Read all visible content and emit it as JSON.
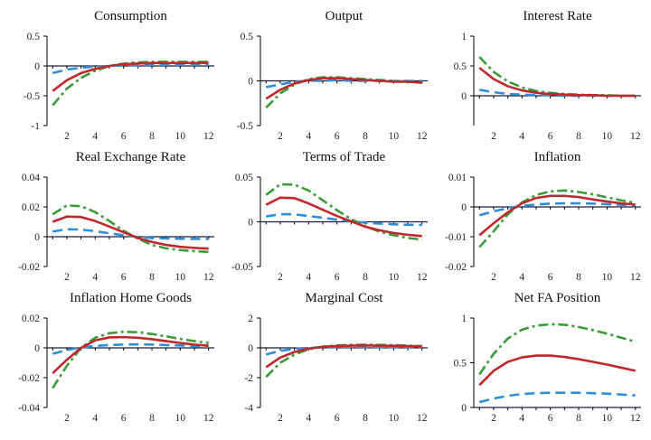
{
  "colors": {
    "solid": "#c0282d",
    "dashed": "#2e8fd6",
    "dashdot": "#3b9a3a",
    "zero": "#1a1a40"
  },
  "chart_data": [
    {
      "type": "line",
      "title": "Consumption",
      "xlabel": "",
      "ylabel": "",
      "xlim": [
        0.6,
        12.4
      ],
      "ylim": [
        -1,
        0.5
      ],
      "yticks": [
        -1,
        -0.5,
        0,
        0.5
      ],
      "ytick_labels": [
        "-1",
        "-0.5",
        "0",
        "0.5"
      ],
      "xticks": [
        2,
        4,
        6,
        8,
        10,
        12
      ],
      "xtick_labels": [
        "2",
        "4",
        "6",
        "8",
        "10",
        "12"
      ],
      "x": [
        1,
        2,
        3,
        4,
        5,
        6,
        7,
        8,
        9,
        10,
        11,
        12
      ],
      "series": [
        {
          "style": "solid",
          "values": [
            -0.42,
            -0.24,
            -0.12,
            -0.05,
            0.0,
            0.03,
            0.04,
            0.05,
            0.05,
            0.05,
            0.05,
            0.05
          ]
        },
        {
          "style": "dashed",
          "values": [
            -0.12,
            -0.06,
            -0.03,
            -0.01,
            0.0,
            0.01,
            0.01,
            0.02,
            0.02,
            0.02,
            0.02,
            0.02
          ]
        },
        {
          "style": "dashdot",
          "values": [
            -0.66,
            -0.38,
            -0.2,
            -0.08,
            0.0,
            0.04,
            0.06,
            0.07,
            0.07,
            0.07,
            0.07,
            0.07
          ]
        }
      ]
    },
    {
      "type": "line",
      "title": "Output",
      "xlabel": "",
      "ylabel": "",
      "xlim": [
        0.6,
        12.4
      ],
      "ylim": [
        -0.5,
        0.5
      ],
      "yticks": [
        -0.5,
        0,
        0.5
      ],
      "ytick_labels": [
        "-0.5",
        "0",
        "0.5"
      ],
      "xticks": [
        2,
        4,
        6,
        8,
        10,
        12
      ],
      "xtick_labels": [
        "2",
        "4",
        "6",
        "8",
        "10",
        "12"
      ],
      "x": [
        1,
        2,
        3,
        4,
        5,
        6,
        7,
        8,
        9,
        10,
        11,
        12
      ],
      "series": [
        {
          "style": "solid",
          "values": [
            -0.2,
            -0.1,
            -0.03,
            0.01,
            0.03,
            0.03,
            0.02,
            0.01,
            0.0,
            -0.01,
            -0.01,
            -0.02
          ]
        },
        {
          "style": "dashed",
          "values": [
            -0.07,
            -0.04,
            -0.01,
            0.0,
            0.0,
            0.01,
            0.0,
            0.0,
            0.0,
            0.0,
            0.0,
            0.0
          ]
        },
        {
          "style": "dashdot",
          "values": [
            -0.3,
            -0.14,
            -0.04,
            0.02,
            0.04,
            0.04,
            0.03,
            0.02,
            0.01,
            0.0,
            -0.01,
            -0.02
          ]
        }
      ]
    },
    {
      "type": "line",
      "title": "Interest Rate",
      "xlabel": "",
      "ylabel": "",
      "xlim": [
        0.6,
        12.4
      ],
      "ylim": [
        -0.5,
        1
      ],
      "yticks": [
        0,
        0.5,
        1
      ],
      "ytick_labels": [
        "0",
        "0.5",
        "1"
      ],
      "xticks": [
        2,
        4,
        6,
        8,
        10,
        12
      ],
      "xtick_labels": [
        "2",
        "4",
        "6",
        "8",
        "10",
        "12"
      ],
      "x": [
        1,
        2,
        3,
        4,
        5,
        6,
        7,
        8,
        9,
        10,
        11,
        12
      ],
      "series": [
        {
          "style": "solid",
          "values": [
            0.47,
            0.28,
            0.16,
            0.09,
            0.05,
            0.03,
            0.02,
            0.01,
            0.01,
            0.0,
            0.0,
            0.0
          ]
        },
        {
          "style": "dashed",
          "values": [
            0.1,
            0.06,
            0.03,
            0.02,
            0.01,
            0.01,
            0.0,
            0.0,
            0.0,
            0.0,
            0.0,
            0.0
          ]
        },
        {
          "style": "dashdot",
          "values": [
            0.65,
            0.4,
            0.24,
            0.14,
            0.08,
            0.05,
            0.03,
            0.02,
            0.01,
            0.01,
            0.0,
            0.0
          ]
        }
      ]
    },
    {
      "type": "line",
      "title": "Real Exchange Rate",
      "xlabel": "",
      "ylabel": "",
      "xlim": [
        0.6,
        12.4
      ],
      "ylim": [
        -0.02,
        0.04
      ],
      "yticks": [
        -0.02,
        0,
        0.02,
        0.04
      ],
      "ytick_labels": [
        "-0.02",
        "0",
        "0.02",
        "0.04"
      ],
      "xticks": [
        2,
        4,
        6,
        8,
        10,
        12
      ],
      "xtick_labels": [
        "2",
        "4",
        "6",
        "8",
        "10",
        "12"
      ],
      "x": [
        1,
        2,
        3,
        4,
        5,
        6,
        7,
        8,
        9,
        10,
        11,
        12
      ],
      "series": [
        {
          "style": "solid",
          "values": [
            0.01,
            0.0135,
            0.0132,
            0.0105,
            0.0068,
            0.003,
            -0.0008,
            -0.0035,
            -0.0055,
            -0.0068,
            -0.0075,
            -0.008
          ]
        },
        {
          "style": "dashed",
          "values": [
            0.0035,
            0.005,
            0.0048,
            0.0037,
            0.0023,
            0.001,
            -0.0002,
            -0.0008,
            -0.0012,
            -0.0014,
            -0.0015,
            -0.0015
          ]
        },
        {
          "style": "dashdot",
          "values": [
            0.015,
            0.021,
            0.0205,
            0.0165,
            0.0105,
            0.004,
            -0.0013,
            -0.0055,
            -0.0078,
            -0.009,
            -0.0097,
            -0.0102
          ]
        }
      ]
    },
    {
      "type": "line",
      "title": "Terms of Trade",
      "xlabel": "",
      "ylabel": "",
      "xlim": [
        0.6,
        12.4
      ],
      "ylim": [
        -0.05,
        0.05
      ],
      "yticks": [
        -0.05,
        0,
        0.05
      ],
      "ytick_labels": [
        "-0.05",
        "0",
        "0.05"
      ],
      "xticks": [
        2,
        4,
        6,
        8,
        10,
        12
      ],
      "xtick_labels": [
        "2",
        "4",
        "6",
        "8",
        "10",
        "12"
      ],
      "x": [
        1,
        2,
        3,
        4,
        5,
        6,
        7,
        8,
        9,
        10,
        11,
        12
      ],
      "series": [
        {
          "style": "solid",
          "values": [
            0.019,
            0.027,
            0.0265,
            0.0205,
            0.0135,
            0.0065,
            0.0005,
            -0.0055,
            -0.0095,
            -0.0125,
            -0.0145,
            -0.016
          ]
        },
        {
          "style": "dashed",
          "values": [
            0.006,
            0.0085,
            0.0083,
            0.0065,
            0.0045,
            0.0025,
            0.0005,
            -0.001,
            -0.002,
            -0.0028,
            -0.0033,
            -0.0035
          ]
        },
        {
          "style": "dashdot",
          "values": [
            0.03,
            0.042,
            0.0415,
            0.035,
            0.024,
            0.013,
            0.003,
            -0.005,
            -0.011,
            -0.015,
            -0.018,
            -0.02
          ]
        }
      ]
    },
    {
      "type": "line",
      "title": "Inflation",
      "xlabel": "",
      "ylabel": "",
      "xlim": [
        0.6,
        12.4
      ],
      "ylim": [
        -0.02,
        0.01
      ],
      "yticks": [
        -0.02,
        -0.01,
        0,
        0.01
      ],
      "ytick_labels": [
        "-0.02",
        "-0.01",
        "0",
        "0.01"
      ],
      "xticks": [
        2,
        4,
        6,
        8,
        10,
        12
      ],
      "xtick_labels": [
        "2",
        "4",
        "6",
        "8",
        "10",
        "12"
      ],
      "x": [
        1,
        2,
        3,
        4,
        5,
        6,
        7,
        8,
        9,
        10,
        11,
        12
      ],
      "series": [
        {
          "style": "solid",
          "values": [
            -0.0095,
            -0.0055,
            -0.0018,
            0.0012,
            0.003,
            0.0037,
            0.0037,
            0.0033,
            0.0025,
            0.0018,
            0.0012,
            0.0008
          ]
        },
        {
          "style": "dashed",
          "values": [
            -0.0028,
            -0.0015,
            -0.0004,
            0.0003,
            0.0008,
            0.0011,
            0.0012,
            0.0012,
            0.0011,
            0.0009,
            0.0007,
            0.0005
          ]
        },
        {
          "style": "dashdot",
          "values": [
            -0.0135,
            -0.0082,
            -0.0025,
            0.0015,
            0.004,
            0.0052,
            0.0055,
            0.005,
            0.0042,
            0.0032,
            0.0022,
            0.0014
          ]
        }
      ]
    },
    {
      "type": "line",
      "title": "Inflation Home Goods",
      "xlabel": "",
      "ylabel": "",
      "xlim": [
        0.6,
        12.4
      ],
      "ylim": [
        -0.04,
        0.02
      ],
      "yticks": [
        -0.04,
        -0.02,
        0,
        0.02
      ],
      "ytick_labels": [
        "-0.04",
        "-0.02",
        "0",
        "0.02"
      ],
      "xticks": [
        2,
        4,
        6,
        8,
        10,
        12
      ],
      "xtick_labels": [
        "2",
        "4",
        "6",
        "8",
        "10",
        "12"
      ],
      "x": [
        1,
        2,
        3,
        4,
        5,
        6,
        7,
        8,
        9,
        10,
        11,
        12
      ],
      "series": [
        {
          "style": "solid",
          "values": [
            -0.017,
            -0.008,
            0.0,
            0.005,
            0.007,
            0.0072,
            0.0068,
            0.0058,
            0.0045,
            0.0033,
            0.0022,
            0.0014
          ]
        },
        {
          "style": "dashed",
          "values": [
            -0.004,
            -0.0015,
            0.0003,
            0.0013,
            0.0019,
            0.0022,
            0.0023,
            0.0022,
            0.0019,
            0.0016,
            0.0012,
            0.0008
          ]
        },
        {
          "style": "dashdot",
          "values": [
            -0.027,
            -0.012,
            0.0,
            0.0068,
            0.0098,
            0.0108,
            0.0105,
            0.0093,
            0.0077,
            0.006,
            0.0045,
            0.0032
          ]
        }
      ]
    },
    {
      "type": "line",
      "title": "Marginal Cost",
      "xlabel": "",
      "ylabel": "",
      "xlim": [
        0.6,
        12.4
      ],
      "ylim": [
        -4,
        2
      ],
      "yticks": [
        -4,
        -2,
        0,
        2
      ],
      "ytick_labels": [
        "-4",
        "-2",
        "0",
        "2"
      ],
      "xticks": [
        2,
        4,
        6,
        8,
        10,
        12
      ],
      "xtick_labels": [
        "2",
        "4",
        "6",
        "8",
        "10",
        "12"
      ],
      "x": [
        1,
        2,
        3,
        4,
        5,
        6,
        7,
        8,
        9,
        10,
        11,
        12
      ],
      "series": [
        {
          "style": "solid",
          "values": [
            -1.3,
            -0.65,
            -0.28,
            -0.06,
            0.07,
            0.13,
            0.15,
            0.16,
            0.15,
            0.14,
            0.12,
            0.1
          ]
        },
        {
          "style": "dashed",
          "values": [
            -0.45,
            -0.2,
            -0.07,
            0.0,
            0.04,
            0.05,
            0.06,
            0.06,
            0.05,
            0.05,
            0.04,
            0.03
          ]
        },
        {
          "style": "dashdot",
          "values": [
            -1.95,
            -1.0,
            -0.45,
            -0.1,
            0.08,
            0.16,
            0.2,
            0.21,
            0.2,
            0.18,
            0.15,
            0.12
          ]
        }
      ]
    },
    {
      "type": "line",
      "title": "Net FA Position",
      "xlabel": "",
      "ylabel": "",
      "xlim": [
        0.6,
        12.4
      ],
      "ylim": [
        0,
        1
      ],
      "yticks": [
        0,
        0.5,
        1
      ],
      "ytick_labels": [
        "0",
        "0.5",
        "1"
      ],
      "xticks": [
        2,
        4,
        6,
        8,
        10,
        12
      ],
      "xtick_labels": [
        "2",
        "4",
        "6",
        "8",
        "10",
        "12"
      ],
      "x": [
        1,
        2,
        3,
        4,
        5,
        6,
        7,
        8,
        9,
        10,
        11,
        12
      ],
      "series": [
        {
          "style": "solid",
          "values": [
            0.25,
            0.41,
            0.51,
            0.56,
            0.58,
            0.58,
            0.565,
            0.54,
            0.51,
            0.48,
            0.445,
            0.41
          ]
        },
        {
          "style": "dashed",
          "values": [
            0.06,
            0.1,
            0.13,
            0.15,
            0.16,
            0.165,
            0.165,
            0.165,
            0.16,
            0.155,
            0.145,
            0.135
          ]
        },
        {
          "style": "dashdot",
          "values": [
            0.37,
            0.6,
            0.77,
            0.87,
            0.915,
            0.93,
            0.925,
            0.9,
            0.865,
            0.825,
            0.78,
            0.735
          ]
        }
      ]
    }
  ]
}
